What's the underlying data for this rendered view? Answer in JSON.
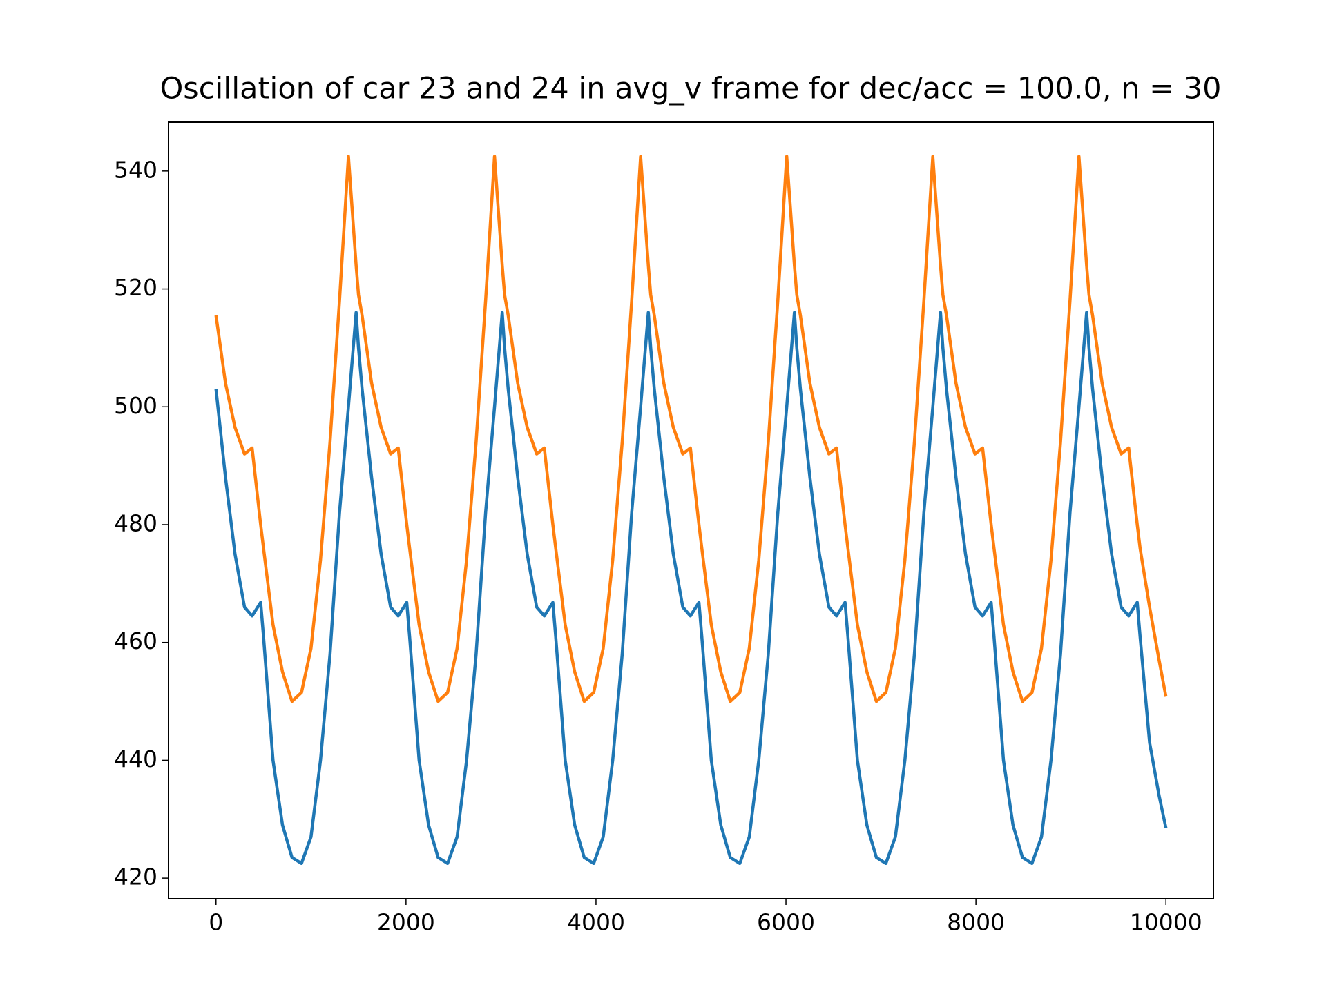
{
  "chart_data": {
    "type": "line",
    "title": "Oscillation of car 23 and 24 in avg_v frame for dec/acc = 100.0, n = 30",
    "x": [
      0,
      100,
      200,
      300,
      380,
      470,
      500,
      600,
      700,
      800,
      900,
      1000,
      1100,
      1200,
      1300,
      1394,
      1475,
      1500,
      1538,
      1638,
      1738,
      1838,
      1918,
      2008,
      2038,
      2138,
      2238,
      2338,
      2438,
      2538,
      2638,
      2738,
      2838,
      2932,
      3013,
      3038,
      3076,
      3176,
      3276,
      3376,
      3456,
      3546,
      3576,
      3676,
      3776,
      3876,
      3976,
      4076,
      4176,
      4276,
      4376,
      4470,
      4551,
      4576,
      4614,
      4714,
      4814,
      4914,
      4994,
      5084,
      5114,
      5214,
      5314,
      5414,
      5514,
      5614,
      5714,
      5814,
      5914,
      6008,
      6089,
      6114,
      6152,
      6252,
      6352,
      6452,
      6532,
      6622,
      6652,
      6752,
      6852,
      6952,
      7052,
      7152,
      7252,
      7352,
      7452,
      7546,
      7627,
      7652,
      7690,
      7790,
      7890,
      7990,
      8070,
      8160,
      8190,
      8290,
      8390,
      8490,
      8590,
      8690,
      8790,
      8890,
      8990,
      9084,
      9165,
      9190,
      9228,
      9328,
      9428,
      9528,
      9608,
      9698,
      9728,
      9828,
      9928,
      10000
    ],
    "series": [
      {
        "color": "#1f77b4",
        "values": [
          503,
          488,
          475,
          466,
          464.5,
          466.8,
          461,
          440,
          429,
          423.5,
          422.5,
          427,
          440,
          458,
          482,
          500,
          516,
          510,
          503,
          488,
          475,
          466,
          464.5,
          466.8,
          461,
          440,
          429,
          423.5,
          422.5,
          427,
          440,
          458,
          482,
          500,
          516,
          510,
          503,
          488,
          475,
          466,
          464.5,
          466.8,
          461,
          440,
          429,
          423.5,
          422.5,
          427,
          440,
          458,
          482,
          500,
          516,
          510,
          503,
          488,
          475,
          466,
          464.5,
          466.8,
          461,
          440,
          429,
          423.5,
          422.5,
          427,
          440,
          458,
          482,
          500,
          516,
          510,
          503,
          488,
          475,
          466,
          464.5,
          466.8,
          461,
          440,
          429,
          423.5,
          422.5,
          427,
          440,
          458,
          482,
          500,
          516,
          510,
          503,
          488,
          475,
          466,
          464.5,
          466.8,
          461,
          440,
          429,
          423.5,
          422.5,
          427,
          440,
          458,
          482,
          500,
          516,
          510,
          503,
          488,
          475,
          466,
          464.5,
          466.8,
          461,
          443,
          434,
          428.5
        ]
      },
      {
        "color": "#ff7f0e",
        "values": [
          515.5,
          504,
          496.5,
          492,
          493,
          480,
          476,
          463,
          455,
          450,
          451.5,
          459,
          474,
          494,
          518,
          542.5,
          524,
          519,
          515.5,
          504,
          496.5,
          492,
          493,
          480,
          476,
          463,
          455,
          450,
          451.5,
          459,
          474,
          494,
          518,
          542.5,
          524,
          519,
          515.5,
          504,
          496.5,
          492,
          493,
          480,
          476,
          463,
          455,
          450,
          451.5,
          459,
          474,
          494,
          518,
          542.5,
          524,
          519,
          515.5,
          504,
          496.5,
          492,
          493,
          480,
          476,
          463,
          455,
          450,
          451.5,
          459,
          474,
          494,
          518,
          542.5,
          524,
          519,
          515.5,
          504,
          496.5,
          492,
          493,
          480,
          476,
          463,
          455,
          450,
          451.5,
          459,
          474,
          494,
          518,
          542.5,
          524,
          519,
          515.5,
          504,
          496.5,
          492,
          493,
          480,
          476,
          463,
          455,
          450,
          451.5,
          459,
          474,
          494,
          518,
          542.5,
          524,
          519,
          515.5,
          504,
          496.5,
          492,
          493,
          480,
          476,
          466,
          457,
          450.8
        ]
      }
    ],
    "xlim": [
      -500,
      10500
    ],
    "ylim": [
      416.5,
      548.3
    ],
    "xticks": [
      0,
      2000,
      4000,
      6000,
      8000,
      10000
    ],
    "yticks": [
      420,
      440,
      460,
      480,
      500,
      520,
      540
    ]
  }
}
